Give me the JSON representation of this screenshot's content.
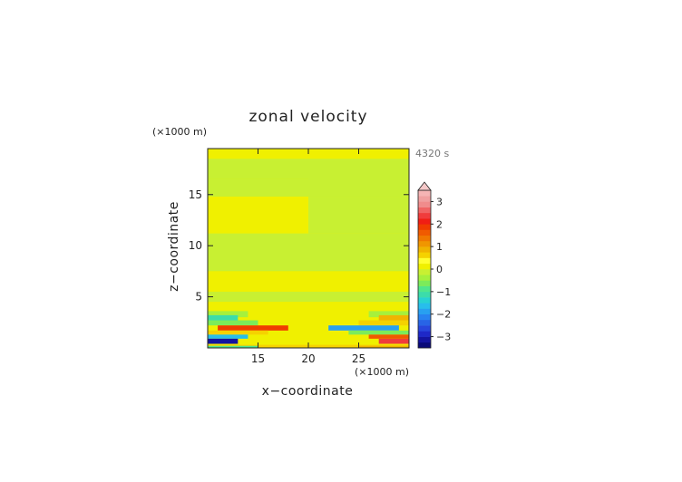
{
  "chart_data": {
    "type": "heatmap",
    "title": "zonal velocity",
    "xlabel": "x−coordinate",
    "ylabel": "z−coordinate",
    "x_unit": "(×1000 m)",
    "y_unit": "(×1000 m)",
    "time_label": "4320 s",
    "xlim": [
      10,
      30
    ],
    "ylim": [
      0,
      19.5
    ],
    "x_ticks": [
      15,
      20,
      25
    ],
    "y_ticks": [
      5,
      10,
      15
    ],
    "x_tick_labels": [
      "15",
      "20",
      "25"
    ],
    "y_tick_labels": [
      "5",
      "10",
      "15"
    ],
    "colorbar": {
      "levels": [
        -3.5,
        -3.25,
        -3,
        -2.75,
        -2.5,
        -2.25,
        -2,
        -1.75,
        -1.5,
        -1.25,
        -1,
        -0.75,
        -0.5,
        -0.25,
        0,
        0.25,
        0.5,
        0.75,
        1,
        1.25,
        1.5,
        1.75,
        2,
        2.25,
        2.5,
        2.75,
        3,
        3.25,
        3.5
      ],
      "colors": [
        "#0a0a78",
        "#1414a0",
        "#1e28c8",
        "#2846dc",
        "#2864e6",
        "#2882f0",
        "#28a0f0",
        "#28beeb",
        "#28d2d2",
        "#3cdcaa",
        "#50e68c",
        "#7ceb5a",
        "#a6f03c",
        "#c8f032",
        "#f0f000",
        "#ffff30",
        "#f5d200",
        "#f0b400",
        "#f09600",
        "#f07800",
        "#f05a00",
        "#f03c00",
        "#f01e14",
        "#f03c3c",
        "#f06464",
        "#f08c8c",
        "#f0a0a0",
        "#f5b4b4"
      ],
      "tick_values": [
        3,
        2,
        1,
        0,
        -1,
        -2,
        -3
      ],
      "tick_labels": [
        "3",
        "2",
        "1",
        "0",
        "−1",
        "−2",
        "−3"
      ],
      "extend": "max"
    },
    "regions": [
      {
        "x": [
          10,
          30
        ],
        "y": [
          0,
          19.5
        ],
        "value": 0.1
      },
      {
        "x": [
          10,
          20
        ],
        "y": [
          18.5,
          19.5
        ],
        "value": 0.1
      },
      {
        "x": [
          20,
          30
        ],
        "y": [
          18.6,
          19.5
        ],
        "value": 0.1
      },
      {
        "x": [
          10,
          30
        ],
        "y": [
          16.5,
          18.5
        ],
        "value": -0.1
      },
      {
        "x": [
          10,
          20
        ],
        "y": [
          14.8,
          16.5
        ],
        "value": -0.1
      },
      {
        "x": [
          20,
          30
        ],
        "y": [
          14.8,
          17
        ],
        "value": -0.1
      },
      {
        "x": [
          10,
          20
        ],
        "y": [
          11.2,
          14.8
        ],
        "value": 0.1
      },
      {
        "x": [
          20,
          30
        ],
        "y": [
          11.2,
          14.8
        ],
        "value": -0.1
      },
      {
        "x": [
          10,
          30
        ],
        "y": [
          7.5,
          11.2
        ],
        "value": -0.1
      },
      {
        "x": [
          10,
          20
        ],
        "y": [
          5.5,
          7.5
        ],
        "value": 0.1
      },
      {
        "x": [
          20,
          30
        ],
        "y": [
          5.5,
          7.5
        ],
        "value": 0.1
      },
      {
        "x": [
          10,
          30
        ],
        "y": [
          4.5,
          5.5
        ],
        "value": -0.1
      },
      {
        "x": [
          10,
          30
        ],
        "y": [
          3.5,
          4.5
        ],
        "value": 0.1
      },
      {
        "x": [
          10,
          14
        ],
        "y": [
          3.0,
          3.6
        ],
        "value": -0.4
      },
      {
        "x": [
          26,
          30
        ],
        "y": [
          3.0,
          3.6
        ],
        "value": -0.4
      },
      {
        "x": [
          10,
          13
        ],
        "y": [
          2.6,
          3.2
        ],
        "value": -1.1
      },
      {
        "x": [
          27,
          30
        ],
        "y": [
          2.6,
          3.2
        ],
        "value": 0.9
      },
      {
        "x": [
          10,
          15
        ],
        "y": [
          2.2,
          2.7
        ],
        "value": -0.6
      },
      {
        "x": [
          25,
          30
        ],
        "y": [
          2.2,
          2.7
        ],
        "value": 0.6
      },
      {
        "x": [
          11,
          18
        ],
        "y": [
          1.7,
          2.2
        ],
        "value": 1.8
      },
      {
        "x": [
          22,
          29
        ],
        "y": [
          1.7,
          2.2
        ],
        "value": -1.8
      },
      {
        "x": [
          10,
          16
        ],
        "y": [
          1.3,
          1.7
        ],
        "value": 0.6
      },
      {
        "x": [
          24,
          30
        ],
        "y": [
          1.3,
          1.7
        ],
        "value": -0.6
      },
      {
        "x": [
          10,
          14
        ],
        "y": [
          0.9,
          1.3
        ],
        "value": -1.6
      },
      {
        "x": [
          26,
          30
        ],
        "y": [
          0.9,
          1.3
        ],
        "value": 1.6
      },
      {
        "x": [
          10,
          13
        ],
        "y": [
          0.4,
          0.9
        ],
        "value": -3.2
      },
      {
        "x": [
          27,
          30
        ],
        "y": [
          0.4,
          0.9
        ],
        "value": 2.3
      },
      {
        "x": [
          10,
          30
        ],
        "y": [
          0,
          0.3
        ],
        "value": 0.6
      },
      {
        "x": [
          10,
          15
        ],
        "y": [
          0,
          0.2
        ],
        "value": -0.9
      },
      {
        "x": [
          25,
          30
        ],
        "y": [
          0,
          0.2
        ],
        "value": 0.9
      }
    ]
  }
}
